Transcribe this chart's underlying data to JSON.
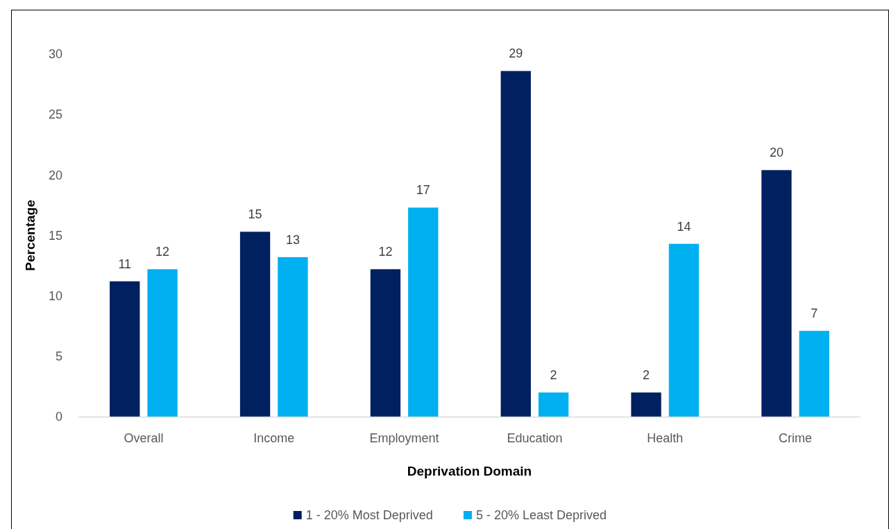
{
  "chart_data": {
    "type": "bar",
    "xlabel": "Deprivation Domain",
    "ylabel": "Percentage",
    "categories": [
      "Overall",
      "Income",
      "Employment",
      "Education",
      "Health",
      "Crime"
    ],
    "series": [
      {
        "name": "1 - 20% Most Deprived",
        "color": "#002060",
        "values": [
          11.2,
          15.3,
          12.2,
          28.6,
          2.0,
          20.4
        ],
        "value_labels": [
          "11",
          "15",
          "12",
          "29",
          "2",
          "20"
        ]
      },
      {
        "name": "5 - 20% Least Deprived",
        "color": "#00b0f0",
        "values": [
          12.2,
          13.2,
          17.3,
          2.0,
          14.3,
          7.1
        ],
        "value_labels": [
          "12",
          "13",
          "17",
          "2",
          "14",
          "7"
        ]
      }
    ],
    "ylim": [
      0,
      30
    ],
    "yticks": [
      0,
      5,
      10,
      15,
      20,
      25,
      30
    ],
    "grid": false,
    "legend": "bottom"
  }
}
